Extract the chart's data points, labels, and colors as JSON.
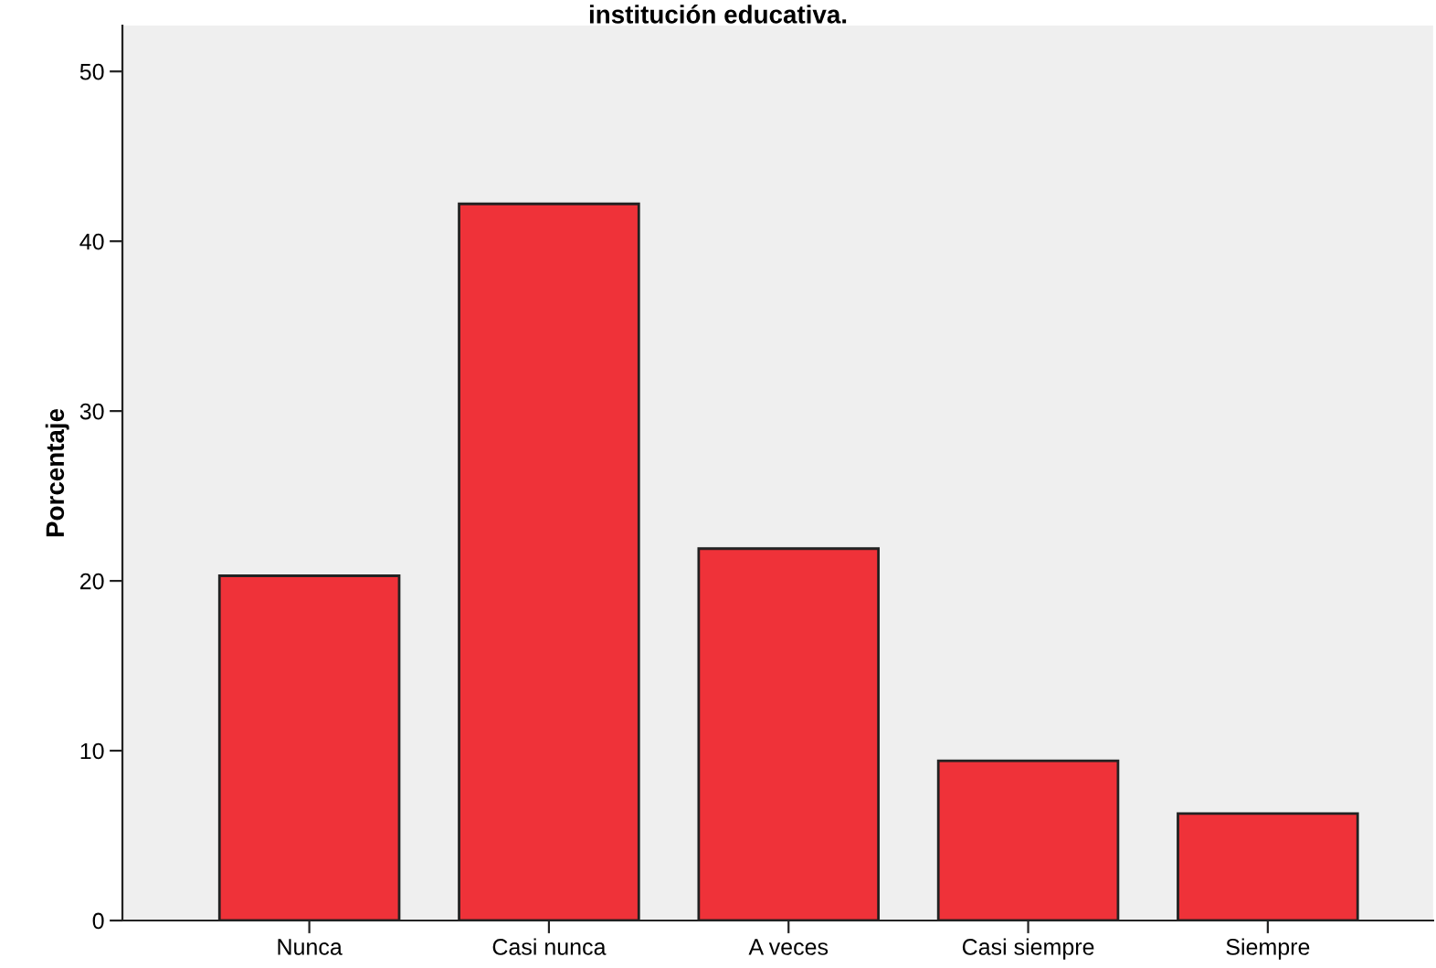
{
  "chart_data": {
    "type": "bar",
    "title": "institución educativa.",
    "ylabel": "Porcentaje",
    "categories": [
      "Nunca",
      "Casi nunca",
      "A veces",
      "Casi siempre",
      "Siempre"
    ],
    "values": [
      20.3,
      42.2,
      21.9,
      9.4,
      6.3
    ],
    "color": "#ef3239",
    "ylim": [
      0,
      52.7
    ],
    "yticks": [
      0,
      10,
      20,
      30,
      40,
      50
    ],
    "grid": false,
    "legend": false
  }
}
